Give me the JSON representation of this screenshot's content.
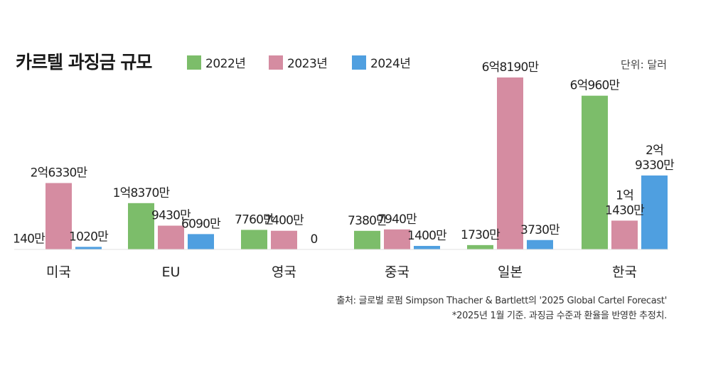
{
  "chart_data": {
    "type": "bar",
    "title": "카르텔 과징금 규모",
    "unit_label": "단위: 달러",
    "categories": [
      "미국",
      "EU",
      "영국",
      "중국",
      "일본",
      "한국"
    ],
    "colors": [
      "#7cbd6a",
      "#d58ca1",
      "#4f9fe0"
    ],
    "series": [
      {
        "name": "2022년",
        "values": [
          1400000,
          183700000,
          77600000,
          73800000,
          17300000,
          609600000
        ],
        "labels": [
          [
            "140만"
          ],
          [
            "1억8370만"
          ],
          [
            "7760만"
          ],
          [
            "7380만"
          ],
          [
            "1730만"
          ],
          [
            "6억960만"
          ]
        ]
      },
      {
        "name": "2023년",
        "values": [
          263300000,
          94300000,
          74000000,
          79400000,
          681900000,
          114300000
        ],
        "labels": [
          [
            "2억6330만"
          ],
          [
            "9430만"
          ],
          [
            "7400만"
          ],
          [
            "7940만"
          ],
          [
            "6억8190만"
          ],
          [
            "1억",
            "1430만"
          ]
        ]
      },
      {
        "name": "2024년",
        "values": [
          10200000,
          60900000,
          0,
          14000000,
          37300000,
          293300000
        ],
        "labels": [
          [
            "1020만"
          ],
          [
            "6090만"
          ],
          [
            "0"
          ],
          [
            "1400만"
          ],
          [
            "3730만"
          ],
          [
            "2억",
            "9330만"
          ]
        ]
      }
    ],
    "ylim": [
      0,
      681900000
    ],
    "legend_position": "top",
    "grid": false,
    "source": "출처: 글로벌 로펌 Simpson Thacher & Bartlett의 '2025 Global Cartel Forecast'",
    "footnote": "*2025년 1월 기준. 과징금 수준과 환율을 반영한 추정치."
  }
}
